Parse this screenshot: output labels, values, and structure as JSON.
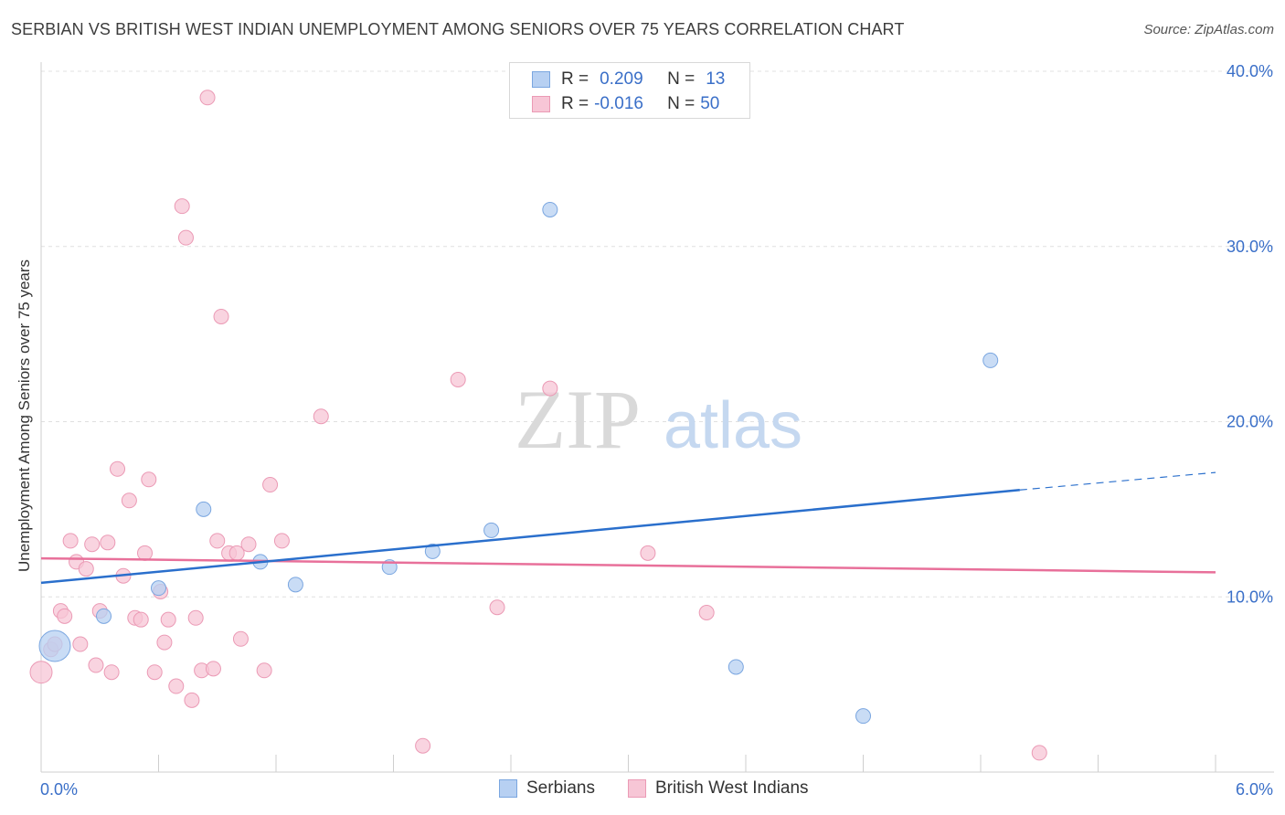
{
  "title": "SERBIAN VS BRITISH WEST INDIAN UNEMPLOYMENT AMONG SENIORS OVER 75 YEARS CORRELATION CHART",
  "source": "Source: ZipAtlas.com",
  "watermark": {
    "zip": "ZIP",
    "atlas": "atlas"
  },
  "legend": {
    "serbians": {
      "r_label": "R =",
      "r_value": "0.209",
      "n_label": "N =",
      "n_value": "13"
    },
    "bwi": {
      "r_label": "R =",
      "r_value": "-0.016",
      "n_label": "N =",
      "n_value": "50"
    }
  },
  "bottom_legend": {
    "serbians": "Serbians",
    "bwi": "British West Indians"
  },
  "colors": {
    "serbians_fill": "#b7d0f2",
    "serbians_stroke": "#7aa6e0",
    "serbians_line": "#2a6fcc",
    "bwi_fill": "#f7c6d6",
    "bwi_stroke": "#eb9ab5",
    "bwi_line": "#e8709a",
    "tick_label": "#3a6fc8"
  },
  "chart_data": {
    "type": "scatter",
    "title": "SERBIAN VS BRITISH WEST INDIAN UNEMPLOYMENT AMONG SENIORS OVER 75 YEARS CORRELATION CHART",
    "xlabel": "",
    "ylabel": "Unemployment Among Seniors over 75 years",
    "xlim": [
      0,
      6
    ],
    "ylim": [
      0,
      40
    ],
    "x_tick_labels": [
      "0.0%",
      "6.0%"
    ],
    "y_ticks": [
      10,
      20,
      30,
      40
    ],
    "y_tick_labels": [
      "10.0%",
      "20.0%",
      "30.0%",
      "40.0%"
    ],
    "grid": true,
    "series": [
      {
        "name": "Serbians",
        "points": [
          {
            "x": 0.07,
            "y": 7.2,
            "size": "large"
          },
          {
            "x": 0.32,
            "y": 8.9
          },
          {
            "x": 0.6,
            "y": 10.5
          },
          {
            "x": 0.83,
            "y": 15.0
          },
          {
            "x": 1.12,
            "y": 12.0
          },
          {
            "x": 1.3,
            "y": 10.7
          },
          {
            "x": 1.78,
            "y": 11.7
          },
          {
            "x": 2.0,
            "y": 12.6
          },
          {
            "x": 2.3,
            "y": 13.8
          },
          {
            "x": 2.6,
            "y": 32.1
          },
          {
            "x": 3.55,
            "y": 6.0
          },
          {
            "x": 4.2,
            "y": 3.2
          },
          {
            "x": 4.85,
            "y": 23.5
          }
        ],
        "trend": {
          "x0": 0,
          "y0": 10.8,
          "x1": 5.0,
          "y1": 16.1,
          "dashed_to_x": 6.0,
          "dashed_to_y": 17.1
        }
      },
      {
        "name": "British West Indians",
        "points": [
          {
            "x": 0.0,
            "y": 5.7,
            "size": "medium"
          },
          {
            "x": 0.05,
            "y": 7.0
          },
          {
            "x": 0.07,
            "y": 7.3
          },
          {
            "x": 0.1,
            "y": 9.2
          },
          {
            "x": 0.12,
            "y": 8.9
          },
          {
            "x": 0.15,
            "y": 13.2
          },
          {
            "x": 0.18,
            "y": 12.0
          },
          {
            "x": 0.2,
            "y": 7.3
          },
          {
            "x": 0.23,
            "y": 11.6
          },
          {
            "x": 0.26,
            "y": 13.0
          },
          {
            "x": 0.28,
            "y": 6.1
          },
          {
            "x": 0.3,
            "y": 9.2
          },
          {
            "x": 0.34,
            "y": 13.1
          },
          {
            "x": 0.36,
            "y": 5.7
          },
          {
            "x": 0.39,
            "y": 17.3
          },
          {
            "x": 0.42,
            "y": 11.2
          },
          {
            "x": 0.45,
            "y": 15.5
          },
          {
            "x": 0.48,
            "y": 8.8
          },
          {
            "x": 0.51,
            "y": 8.7
          },
          {
            "x": 0.53,
            "y": 12.5
          },
          {
            "x": 0.55,
            "y": 16.7
          },
          {
            "x": 0.58,
            "y": 5.7
          },
          {
            "x": 0.61,
            "y": 10.3
          },
          {
            "x": 0.63,
            "y": 7.4
          },
          {
            "x": 0.65,
            "y": 8.7
          },
          {
            "x": 0.69,
            "y": 4.9
          },
          {
            "x": 0.72,
            "y": 32.3
          },
          {
            "x": 0.74,
            "y": 30.5
          },
          {
            "x": 0.77,
            "y": 4.1
          },
          {
            "x": 0.79,
            "y": 8.8
          },
          {
            "x": 0.82,
            "y": 5.8
          },
          {
            "x": 0.85,
            "y": 38.5
          },
          {
            "x": 0.88,
            "y": 5.9
          },
          {
            "x": 0.9,
            "y": 13.2
          },
          {
            "x": 0.92,
            "y": 26.0
          },
          {
            "x": 0.96,
            "y": 12.5
          },
          {
            "x": 1.0,
            "y": 12.5
          },
          {
            "x": 1.02,
            "y": 7.6
          },
          {
            "x": 1.06,
            "y": 13.0
          },
          {
            "x": 1.14,
            "y": 5.8
          },
          {
            "x": 1.17,
            "y": 16.4
          },
          {
            "x": 1.23,
            "y": 13.2
          },
          {
            "x": 1.43,
            "y": 20.3
          },
          {
            "x": 1.95,
            "y": 1.5
          },
          {
            "x": 2.13,
            "y": 22.4
          },
          {
            "x": 2.33,
            "y": 9.4
          },
          {
            "x": 2.6,
            "y": 21.9
          },
          {
            "x": 3.1,
            "y": 12.5
          },
          {
            "x": 3.4,
            "y": 9.1
          },
          {
            "x": 5.1,
            "y": 1.1
          }
        ],
        "trend": {
          "x0": 0,
          "y0": 12.2,
          "x1": 6.0,
          "y1": 11.4
        }
      }
    ]
  }
}
